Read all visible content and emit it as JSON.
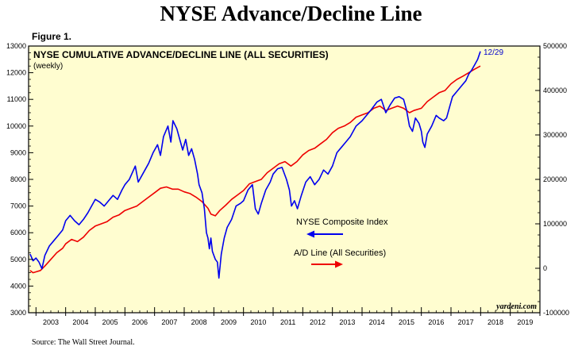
{
  "page": {
    "title": "NYSE Advance/Decline Line",
    "figure_label": "Figure 1.",
    "source": "Source: The Wall Street Journal."
  },
  "chart_data": {
    "type": "line",
    "title": "NYSE CUMULATIVE ADVANCE/DECLINE LINE (ALL SECURITIES)",
    "subtitle": "(weekly)",
    "watermark": "yardeni.com",
    "annotation": "12/29",
    "grid": false,
    "plot_background": "#fffdd0",
    "x_range": [
      2002.75,
      2020.0
    ],
    "x_ticks": [
      "2003",
      "2004",
      "2005",
      "2006",
      "2007",
      "2008",
      "2009",
      "2010",
      "2011",
      "2012",
      "2013",
      "2014",
      "2015",
      "2016",
      "2017",
      "2018",
      "2019"
    ],
    "y_left": {
      "range": [
        3000,
        13000
      ],
      "ticks": [
        3000,
        4000,
        5000,
        6000,
        7000,
        8000,
        9000,
        10000,
        11000,
        12000,
        13000
      ],
      "tick_labels": [
        "3000",
        "4000",
        "5000",
        "6000",
        "7000",
        "8000",
        "9000",
        "10000",
        "11000",
        "12000",
        "13000"
      ]
    },
    "y_right": {
      "range": [
        -100000,
        500000
      ],
      "ticks": [
        -100000,
        0,
        100000,
        200000,
        300000,
        400000,
        500000
      ],
      "tick_labels": [
        "-100000",
        "0",
        "100000",
        "200000",
        "300000",
        "400000",
        "500000"
      ]
    },
    "legend": [
      {
        "label": "NYSE Composite Index",
        "color": "#0000ee",
        "arrow": "left"
      },
      {
        "label": "A/D Line (All Securities)",
        "color": "#ee0000",
        "arrow": "right"
      }
    ],
    "series": [
      {
        "name": "NYSE Composite Index",
        "axis": "left",
        "color": "#0000ee",
        "points": [
          [
            2002.8,
            5200
          ],
          [
            2002.9,
            4950
          ],
          [
            2003.0,
            5050
          ],
          [
            2003.1,
            4900
          ],
          [
            2003.2,
            4650
          ],
          [
            2003.3,
            5150
          ],
          [
            2003.45,
            5500
          ],
          [
            2003.6,
            5700
          ],
          [
            2003.75,
            5900
          ],
          [
            2003.9,
            6100
          ],
          [
            2004.0,
            6450
          ],
          [
            2004.15,
            6650
          ],
          [
            2004.3,
            6450
          ],
          [
            2004.45,
            6300
          ],
          [
            2004.6,
            6500
          ],
          [
            2004.75,
            6750
          ],
          [
            2004.9,
            7050
          ],
          [
            2005.0,
            7250
          ],
          [
            2005.15,
            7150
          ],
          [
            2005.3,
            7000
          ],
          [
            2005.45,
            7200
          ],
          [
            2005.6,
            7400
          ],
          [
            2005.75,
            7250
          ],
          [
            2005.9,
            7600
          ],
          [
            2006.0,
            7800
          ],
          [
            2006.15,
            8000
          ],
          [
            2006.35,
            8500
          ],
          [
            2006.45,
            7900
          ],
          [
            2006.6,
            8200
          ],
          [
            2006.8,
            8600
          ],
          [
            2006.95,
            9000
          ],
          [
            2007.1,
            9300
          ],
          [
            2007.2,
            8900
          ],
          [
            2007.3,
            9600
          ],
          [
            2007.45,
            10000
          ],
          [
            2007.55,
            9400
          ],
          [
            2007.62,
            10200
          ],
          [
            2007.75,
            9900
          ],
          [
            2007.85,
            9500
          ],
          [
            2007.95,
            9100
          ],
          [
            2008.05,
            9500
          ],
          [
            2008.15,
            8900
          ],
          [
            2008.25,
            9150
          ],
          [
            2008.35,
            8750
          ],
          [
            2008.45,
            8200
          ],
          [
            2008.5,
            7800
          ],
          [
            2008.6,
            7500
          ],
          [
            2008.68,
            6900
          ],
          [
            2008.75,
            6000
          ],
          [
            2008.8,
            5800
          ],
          [
            2008.85,
            5400
          ],
          [
            2008.9,
            5800
          ],
          [
            2008.95,
            5300
          ],
          [
            2009.05,
            5000
          ],
          [
            2009.12,
            4900
          ],
          [
            2009.17,
            4300
          ],
          [
            2009.25,
            5200
          ],
          [
            2009.35,
            5800
          ],
          [
            2009.45,
            6200
          ],
          [
            2009.6,
            6500
          ],
          [
            2009.75,
            7000
          ],
          [
            2009.9,
            7100
          ],
          [
            2010.0,
            7200
          ],
          [
            2010.15,
            7600
          ],
          [
            2010.3,
            7800
          ],
          [
            2010.4,
            6900
          ],
          [
            2010.5,
            6700
          ],
          [
            2010.6,
            7100
          ],
          [
            2010.75,
            7600
          ],
          [
            2010.9,
            7900
          ],
          [
            2011.0,
            8200
          ],
          [
            2011.15,
            8400
          ],
          [
            2011.3,
            8450
          ],
          [
            2011.45,
            8000
          ],
          [
            2011.55,
            7600
          ],
          [
            2011.62,
            7000
          ],
          [
            2011.72,
            7200
          ],
          [
            2011.82,
            6900
          ],
          [
            2011.95,
            7400
          ],
          [
            2012.1,
            7900
          ],
          [
            2012.25,
            8100
          ],
          [
            2012.4,
            7800
          ],
          [
            2012.55,
            8000
          ],
          [
            2012.7,
            8350
          ],
          [
            2012.85,
            8200
          ],
          [
            2013.0,
            8500
          ],
          [
            2013.15,
            9000
          ],
          [
            2013.3,
            9200
          ],
          [
            2013.45,
            9400
          ],
          [
            2013.6,
            9600
          ],
          [
            2013.8,
            10000
          ],
          [
            2014.0,
            10200
          ],
          [
            2014.15,
            10400
          ],
          [
            2014.3,
            10600
          ],
          [
            2014.5,
            10900
          ],
          [
            2014.65,
            11000
          ],
          [
            2014.8,
            10500
          ],
          [
            2014.95,
            10800
          ],
          [
            2015.1,
            11050
          ],
          [
            2015.25,
            11100
          ],
          [
            2015.4,
            11000
          ],
          [
            2015.5,
            10600
          ],
          [
            2015.6,
            10000
          ],
          [
            2015.7,
            9800
          ],
          [
            2015.8,
            10300
          ],
          [
            2015.92,
            10100
          ],
          [
            2016.0,
            9800
          ],
          [
            2016.05,
            9400
          ],
          [
            2016.12,
            9200
          ],
          [
            2016.2,
            9700
          ],
          [
            2016.35,
            10000
          ],
          [
            2016.5,
            10400
          ],
          [
            2016.6,
            10300
          ],
          [
            2016.75,
            10200
          ],
          [
            2016.85,
            10300
          ],
          [
            2016.95,
            10700
          ],
          [
            2017.05,
            11100
          ],
          [
            2017.2,
            11300
          ],
          [
            2017.35,
            11500
          ],
          [
            2017.5,
            11700
          ],
          [
            2017.6,
            11950
          ],
          [
            2017.7,
            12100
          ],
          [
            2017.8,
            12300
          ],
          [
            2017.9,
            12500
          ],
          [
            2017.99,
            12800
          ]
        ]
      },
      {
        "name": "A/D Line (All Securities)",
        "axis": "right",
        "color": "#ee0000",
        "points": [
          [
            2002.8,
            -5000
          ],
          [
            2002.9,
            -10000
          ],
          [
            2003.0,
            -8000
          ],
          [
            2003.15,
            -5000
          ],
          [
            2003.3,
            5000
          ],
          [
            2003.5,
            20000
          ],
          [
            2003.7,
            35000
          ],
          [
            2003.9,
            45000
          ],
          [
            2004.0,
            55000
          ],
          [
            2004.2,
            65000
          ],
          [
            2004.4,
            60000
          ],
          [
            2004.6,
            70000
          ],
          [
            2004.8,
            85000
          ],
          [
            2005.0,
            95000
          ],
          [
            2005.2,
            100000
          ],
          [
            2005.4,
            105000
          ],
          [
            2005.6,
            115000
          ],
          [
            2005.8,
            120000
          ],
          [
            2006.0,
            130000
          ],
          [
            2006.2,
            135000
          ],
          [
            2006.4,
            140000
          ],
          [
            2006.6,
            150000
          ],
          [
            2006.8,
            160000
          ],
          [
            2007.0,
            170000
          ],
          [
            2007.2,
            180000
          ],
          [
            2007.4,
            183000
          ],
          [
            2007.6,
            178000
          ],
          [
            2007.8,
            178000
          ],
          [
            2008.0,
            172000
          ],
          [
            2008.2,
            168000
          ],
          [
            2008.4,
            160000
          ],
          [
            2008.6,
            150000
          ],
          [
            2008.8,
            135000
          ],
          [
            2008.9,
            122000
          ],
          [
            2009.05,
            118000
          ],
          [
            2009.2,
            130000
          ],
          [
            2009.4,
            142000
          ],
          [
            2009.6,
            155000
          ],
          [
            2009.8,
            165000
          ],
          [
            2010.0,
            175000
          ],
          [
            2010.2,
            190000
          ],
          [
            2010.4,
            195000
          ],
          [
            2010.6,
            200000
          ],
          [
            2010.8,
            215000
          ],
          [
            2011.0,
            225000
          ],
          [
            2011.2,
            235000
          ],
          [
            2011.4,
            240000
          ],
          [
            2011.6,
            230000
          ],
          [
            2011.8,
            240000
          ],
          [
            2012.0,
            255000
          ],
          [
            2012.2,
            265000
          ],
          [
            2012.4,
            270000
          ],
          [
            2012.6,
            280000
          ],
          [
            2012.8,
            290000
          ],
          [
            2013.0,
            305000
          ],
          [
            2013.2,
            315000
          ],
          [
            2013.4,
            320000
          ],
          [
            2013.6,
            328000
          ],
          [
            2013.8,
            340000
          ],
          [
            2014.0,
            345000
          ],
          [
            2014.2,
            350000
          ],
          [
            2014.4,
            360000
          ],
          [
            2014.6,
            365000
          ],
          [
            2014.8,
            355000
          ],
          [
            2015.0,
            360000
          ],
          [
            2015.2,
            365000
          ],
          [
            2015.4,
            360000
          ],
          [
            2015.6,
            350000
          ],
          [
            2015.75,
            355000
          ],
          [
            2016.0,
            360000
          ],
          [
            2016.2,
            375000
          ],
          [
            2016.4,
            385000
          ],
          [
            2016.6,
            395000
          ],
          [
            2016.8,
            400000
          ],
          [
            2017.0,
            415000
          ],
          [
            2017.2,
            425000
          ],
          [
            2017.4,
            432000
          ],
          [
            2017.6,
            440000
          ],
          [
            2017.8,
            448000
          ],
          [
            2017.99,
            455000
          ]
        ]
      }
    ]
  }
}
